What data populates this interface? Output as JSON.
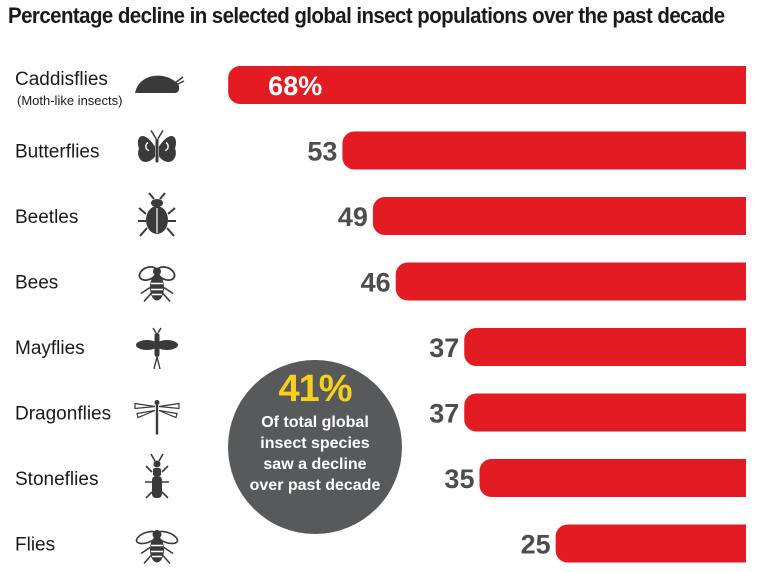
{
  "title": "Percentage decline in selected global insect populations over the past decade",
  "colors": {
    "bar": "#e31b23",
    "value_text": "#4d4d4d",
    "icon": "#3a3a3a",
    "callout_bg": "#58595b",
    "callout_number": "#f7d117"
  },
  "chart_data": {
    "type": "bar",
    "orientation": "horizontal",
    "title": "Percentage decline in selected global insect populations over the past decade",
    "categories": [
      {
        "name": "Caddisflies",
        "subtitle": "(Moth-like insects)",
        "icon": "caddisfly-icon",
        "value": 68,
        "label": "68%"
      },
      {
        "name": "Butterflies",
        "icon": "butterfly-icon",
        "value": 53,
        "label": "53"
      },
      {
        "name": "Beetles",
        "icon": "beetle-icon",
        "value": 49,
        "label": "49"
      },
      {
        "name": "Bees",
        "icon": "bee-icon",
        "value": 46,
        "label": "46"
      },
      {
        "name": "Mayflies",
        "icon": "mayfly-icon",
        "value": 37,
        "label": "37"
      },
      {
        "name": "Dragonflies",
        "icon": "dragonfly-icon",
        "value": 37,
        "label": "37"
      },
      {
        "name": "Stoneflies",
        "icon": "stonefly-icon",
        "value": 35,
        "label": "35"
      },
      {
        "name": "Flies",
        "icon": "fly-icon",
        "value": 25,
        "label": "25"
      }
    ],
    "bar_anchor": "right",
    "grid": false
  },
  "callout": {
    "value": "41%",
    "text": "Of total global\ninsect species\nsaw a decline\nover past decade"
  }
}
